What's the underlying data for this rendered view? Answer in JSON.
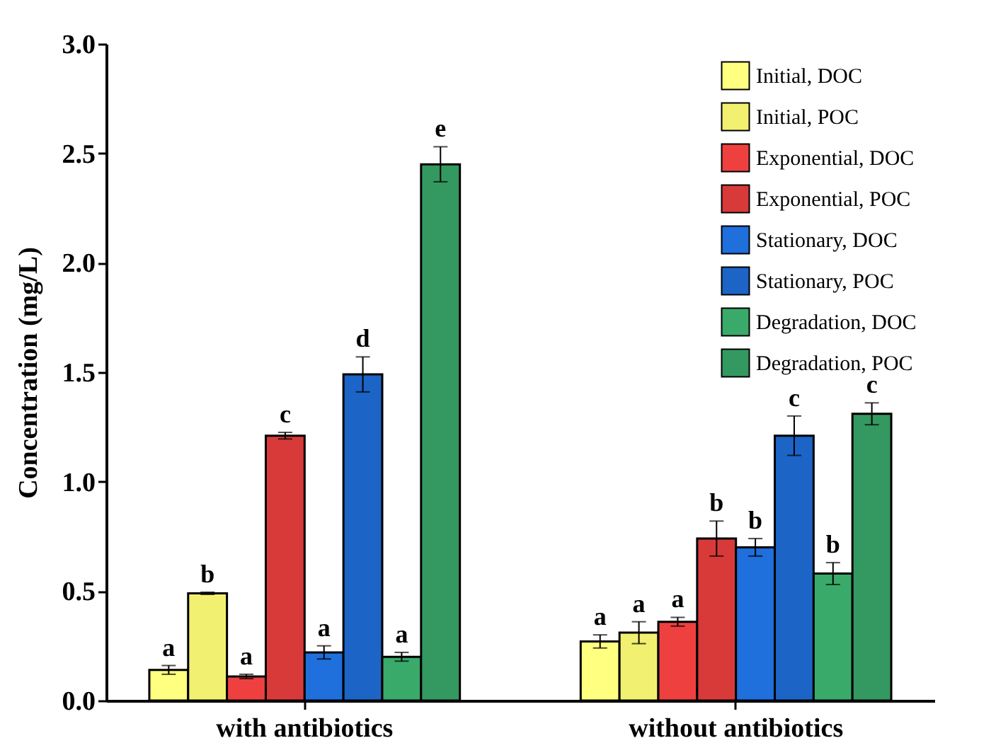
{
  "chart_data": {
    "type": "bar",
    "ylabel": "Concentration (mg/L)",
    "categories": [
      "with antibiotics",
      "without antibiotics"
    ],
    "ylim": [
      0,
      3.0
    ],
    "yticks": [
      {
        "value": 0,
        "label": "0.0"
      },
      0.5,
      {
        "value": 1,
        "label": "1.0"
      },
      1.5,
      {
        "value": 2,
        "label": "2.0"
      },
      2.5,
      {
        "value": 3,
        "label": "3.0"
      }
    ],
    "legend": "top right",
    "grid": false,
    "series": [
      {
        "name": "Initial, DOC",
        "color": "#ffff80",
        "values": [
          0.14,
          0.27
        ],
        "errors": [
          0.02,
          0.03
        ],
        "value_labels": [
          "a",
          "a"
        ]
      },
      {
        "name": "Initial, POC",
        "color": "#f2f070",
        "values": [
          0.49,
          0.31
        ],
        "errors": [
          0.005,
          0.05
        ],
        "value_labels": [
          "b",
          "a"
        ]
      },
      {
        "name": "Exponential, DOC",
        "color": "#ef4040",
        "values": [
          0.11,
          0.36
        ],
        "errors": [
          0.01,
          0.02
        ],
        "value_labels": [
          "a",
          "a"
        ]
      },
      {
        "name": "Exponential, POC",
        "color": "#d83a3a",
        "values": [
          1.21,
          0.74
        ],
        "errors": [
          0.015,
          0.08
        ],
        "value_labels": [
          "c",
          "b"
        ]
      },
      {
        "name": "Stationary, DOC",
        "color": "#1f6fdc",
        "values": [
          0.22,
          0.7
        ],
        "errors": [
          0.03,
          0.04
        ],
        "value_labels": [
          "a",
          "b"
        ]
      },
      {
        "name": "Stationary, POC",
        "color": "#1c64c6",
        "values": [
          1.49,
          1.21
        ],
        "errors": [
          0.08,
          0.09
        ],
        "value_labels": [
          "d",
          "c"
        ]
      },
      {
        "name": "Degradation, DOC",
        "color": "#3aaa6a",
        "values": [
          0.2,
          0.58
        ],
        "errors": [
          0.02,
          0.05
        ],
        "value_labels": [
          "a",
          "b"
        ]
      },
      {
        "name": "Degradation, POC",
        "color": "#349960",
        "values": [
          2.45,
          1.31
        ],
        "errors": [
          0.08,
          0.05
        ],
        "value_labels": [
          "e",
          "c"
        ]
      }
    ]
  }
}
